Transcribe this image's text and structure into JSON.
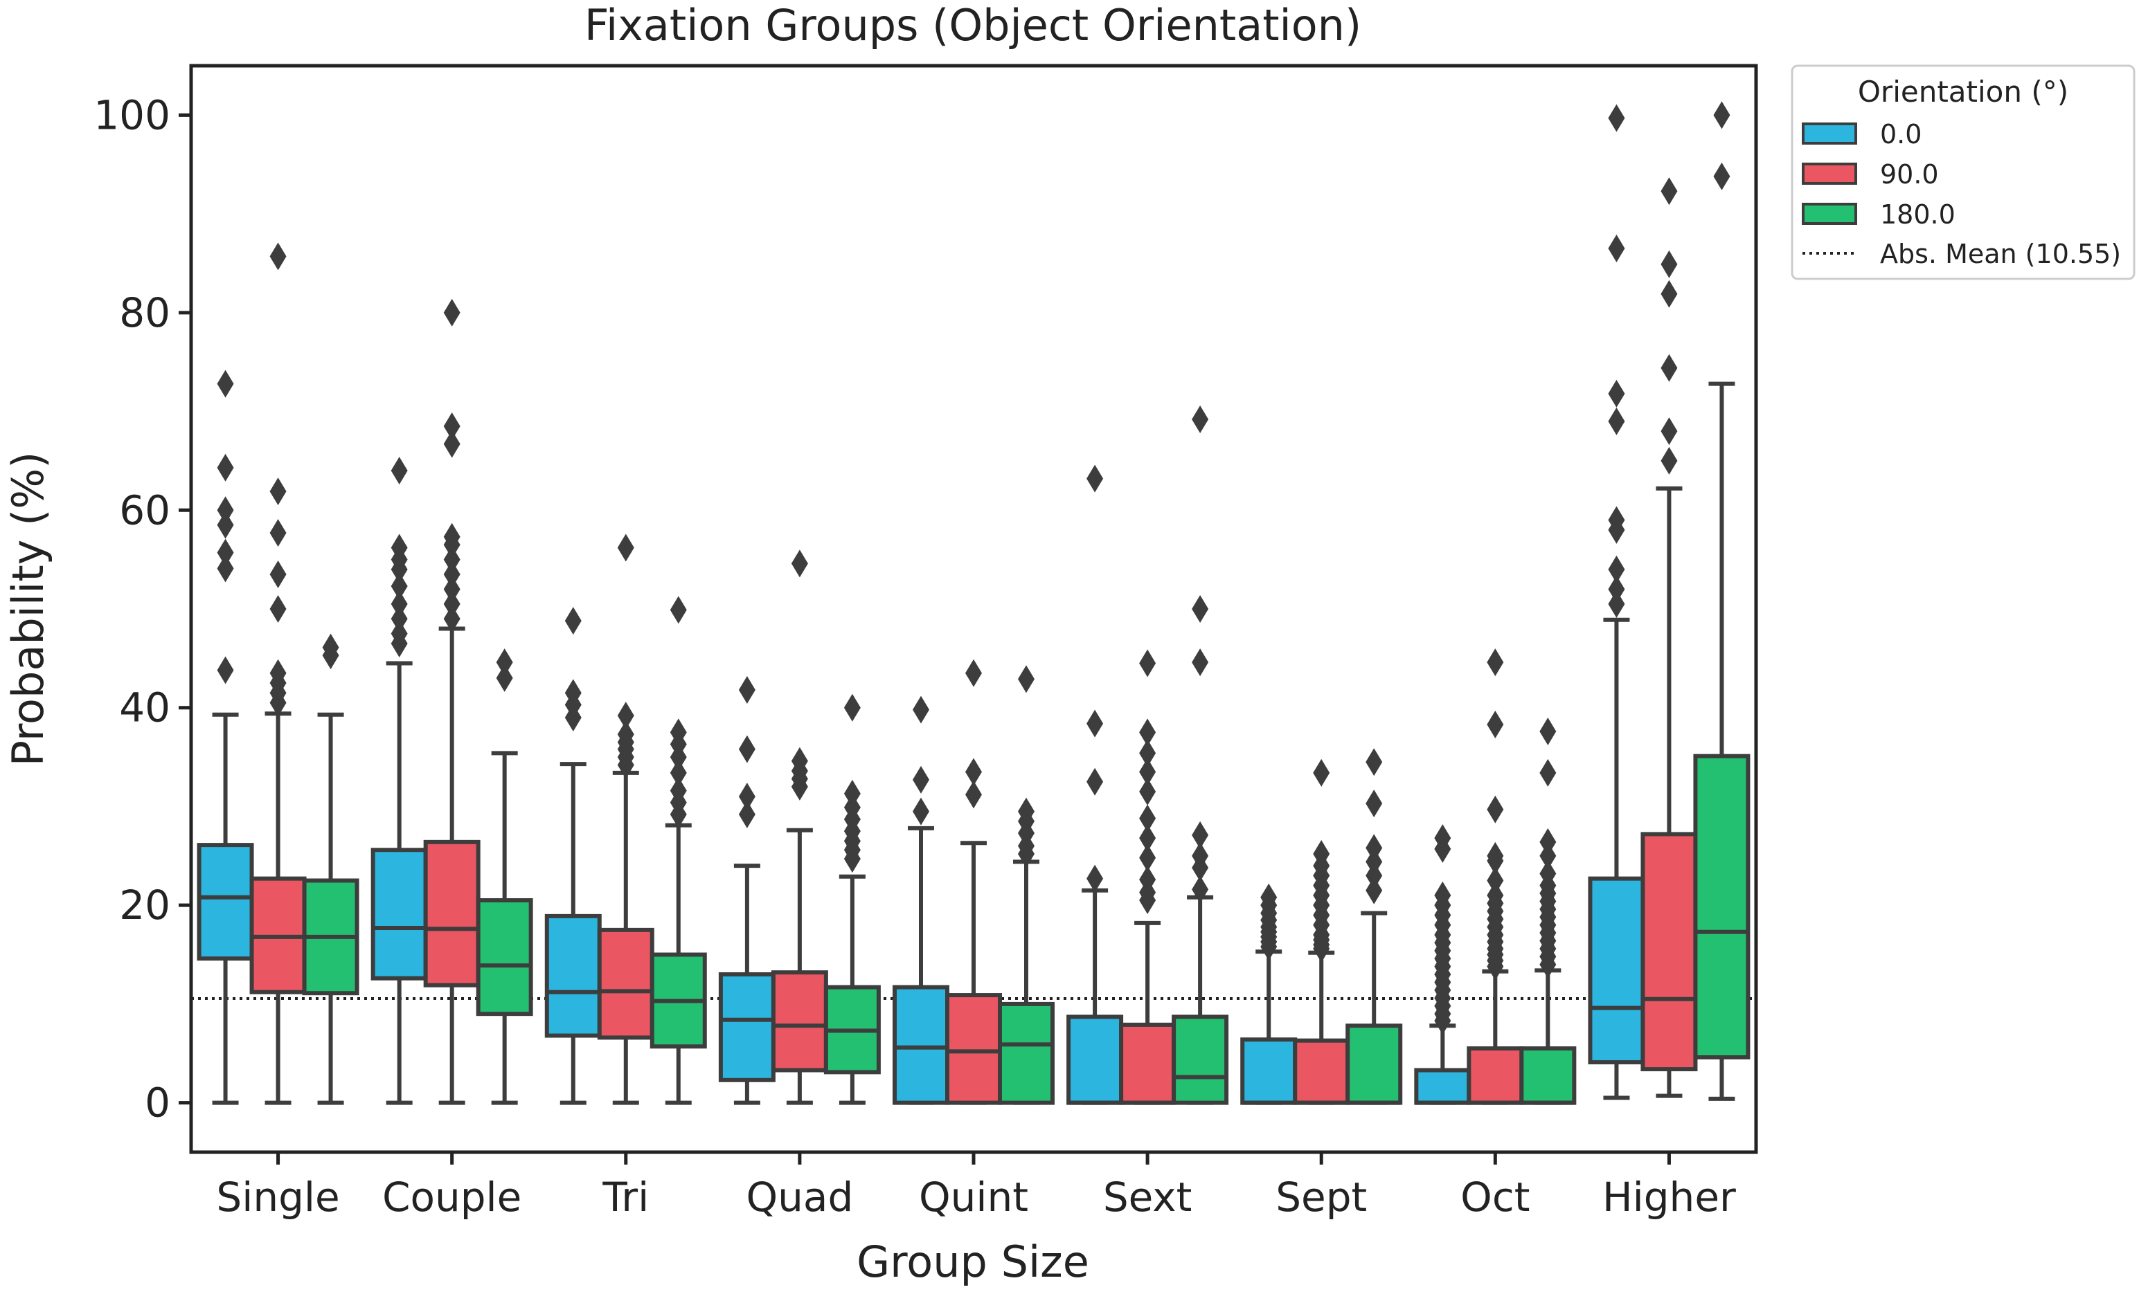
{
  "chart_data": {
    "type": "box",
    "title": "Fixation Groups (Object Orientation)",
    "xlabel": "Group Size",
    "ylabel": "Probability (%)",
    "ylim": [
      -5,
      105
    ],
    "yticks": [
      0,
      20,
      40,
      60,
      80,
      100
    ],
    "categories": [
      "Single",
      "Couple",
      "Tri",
      "Quad",
      "Quint",
      "Sext",
      "Sept",
      "Oct",
      "Higher"
    ],
    "legend": {
      "title": "Orientation (°)",
      "position": "outside-top-right",
      "mean_label": "Abs. Mean (10.55)"
    },
    "mean_line": 10.55,
    "series": [
      {
        "name": "0.0",
        "color": "#2bb5df",
        "boxes": [
          {
            "whislo": 0,
            "q1": 14.6,
            "med": 20.8,
            "q3": 26.1,
            "whishi": 39.3,
            "fliers": [
              43.8,
              54.1,
              55.7,
              58.5,
              60.0,
              64.3,
              72.8
            ]
          },
          {
            "whislo": 0,
            "q1": 12.6,
            "med": 17.7,
            "q3": 25.6,
            "whishi": 44.5,
            "fliers": [
              46.5,
              47.5,
              49.0,
              50.5,
              52.3,
              54.0,
              55.0,
              56.2,
              64.0
            ]
          },
          {
            "whislo": 0,
            "q1": 6.8,
            "med": 11.2,
            "q3": 18.9,
            "whishi": 34.3,
            "fliers": [
              39.0,
              40.3,
              41.5,
              48.8
            ]
          },
          {
            "whislo": 0,
            "q1": 2.3,
            "med": 8.4,
            "q3": 13.0,
            "whishi": 24.0,
            "fliers": [
              29.2,
              31.0,
              35.8,
              41.8
            ]
          },
          {
            "whislo": 0,
            "q1": 0,
            "med": 5.6,
            "q3": 11.7,
            "whishi": 27.8,
            "fliers": [
              29.5,
              32.7,
              39.8
            ]
          },
          {
            "whislo": 0,
            "q1": 0,
            "med": 0,
            "q3": 8.7,
            "whishi": 21.5,
            "fliers": [
              22.7,
              32.5,
              38.4,
              63.2
            ]
          },
          {
            "whislo": 0,
            "q1": 0,
            "med": 0,
            "q3": 6.4,
            "whishi": 15.3,
            "fliers": [
              15.8,
              16.3,
              16.8,
              17.3,
              17.8,
              18.5,
              19.2,
              20.0,
              20.8
            ]
          },
          {
            "whislo": 0,
            "q1": 0,
            "med": 0,
            "q3": 3.3,
            "whishi": 7.8,
            "fliers": [
              8.3,
              9.0,
              9.8,
              10.6,
              11.4,
              12.2,
              13.0,
              13.8,
              14.6,
              15.4,
              16.2,
              17.0,
              18.0,
              19.0,
              20.0,
              21.0,
              25.7,
              26.8
            ]
          },
          {
            "whislo": 0.5,
            "q1": 4.1,
            "med": 9.6,
            "q3": 22.7,
            "whishi": 48.9,
            "fliers": [
              50.5,
              52.0,
              54.0,
              58.0,
              59.0,
              69.0,
              71.8,
              86.5,
              99.7
            ]
          }
        ]
      },
      {
        "name": "90.0",
        "color": "#ea5661",
        "boxes": [
          {
            "whislo": 0,
            "q1": 11.2,
            "med": 16.8,
            "q3": 22.7,
            "whishi": 39.4,
            "fliers": [
              40.5,
              41.5,
              42.5,
              43.5,
              50.0,
              53.5,
              57.7,
              61.9,
              85.7
            ]
          },
          {
            "whislo": 0,
            "q1": 11.9,
            "med": 17.6,
            "q3": 26.4,
            "whishi": 48.0,
            "fliers": [
              49.0,
              50.5,
              52.0,
              53.5,
              55.0,
              56.5,
              57.3,
              66.7,
              68.5,
              80.0
            ]
          },
          {
            "whislo": 0,
            "q1": 6.6,
            "med": 11.3,
            "q3": 17.5,
            "whishi": 33.4,
            "fliers": [
              34.2,
              35.0,
              35.8,
              36.5,
              37.3,
              39.2,
              56.2
            ]
          },
          {
            "whislo": 0,
            "q1": 3.3,
            "med": 7.8,
            "q3": 13.2,
            "whishi": 27.6,
            "fliers": [
              32.0,
              32.8,
              33.6,
              34.6,
              54.6
            ]
          },
          {
            "whislo": 0,
            "q1": 0,
            "med": 5.2,
            "q3": 10.9,
            "whishi": 26.3,
            "fliers": [
              31.2,
              33.5,
              43.5
            ]
          },
          {
            "whislo": 0,
            "q1": 0,
            "med": 0,
            "q3": 7.9,
            "whishi": 18.2,
            "fliers": [
              20.5,
              21.3,
              22.6,
              24.8,
              26.8,
              28.8,
              31.5,
              33.5,
              35.4,
              37.5,
              44.5
            ]
          },
          {
            "whislo": 0,
            "q1": 0,
            "med": 0,
            "q3": 6.3,
            "whishi": 15.2,
            "fliers": [
              15.6,
              16.0,
              16.5,
              17.0,
              18.0,
              19.0,
              20.0,
              21.0,
              22.0,
              23.0,
              24.0,
              25.2,
              33.4
            ]
          },
          {
            "whislo": 0,
            "q1": 0,
            "med": 0,
            "q3": 5.5,
            "whishi": 13.3,
            "fliers": [
              13.8,
              14.4,
              15.0,
              15.6,
              16.3,
              17.0,
              17.8,
              18.6,
              19.4,
              20.2,
              21.0,
              22.5,
              24.5,
              25.0,
              29.7,
              38.3,
              44.6
            ]
          },
          {
            "whislo": 0.7,
            "q1": 3.4,
            "med": 10.5,
            "q3": 27.2,
            "whishi": 62.2,
            "fliers": [
              65.0,
              68.0,
              74.4,
              81.9,
              84.9,
              92.3
            ]
          }
        ]
      },
      {
        "name": "180.0",
        "color": "#24c071",
        "boxes": [
          {
            "whislo": 0,
            "q1": 11.1,
            "med": 16.8,
            "q3": 22.5,
            "whishi": 39.3,
            "fliers": [
              45.3,
              46.1
            ]
          },
          {
            "whislo": 0,
            "q1": 9.0,
            "med": 13.9,
            "q3": 20.5,
            "whishi": 35.4,
            "fliers": [
              43.0,
              44.6
            ]
          },
          {
            "whislo": 0,
            "q1": 5.7,
            "med": 10.3,
            "q3": 15.0,
            "whishi": 28.1,
            "fliers": [
              29.2,
              30.4,
              31.6,
              33.4,
              35.0,
              36.3,
              37.5,
              49.9
            ]
          },
          {
            "whislo": 0,
            "q1": 3.1,
            "med": 7.3,
            "q3": 11.7,
            "whishi": 22.9,
            "fliers": [
              24.7,
              25.6,
              26.5,
              27.5,
              28.7,
              29.9,
              31.3,
              40.0
            ]
          },
          {
            "whislo": 0,
            "q1": 0,
            "med": 5.9,
            "q3": 10.0,
            "whishi": 24.4,
            "fliers": [
              25.2,
              26.0,
              27.3,
              28.5,
              29.5,
              42.9
            ]
          },
          {
            "whislo": 0,
            "q1": 0,
            "med": 2.6,
            "q3": 8.7,
            "whishi": 20.8,
            "fliers": [
              21.6,
              23.8,
              25.0,
              27.1,
              44.6,
              50.0,
              69.2
            ]
          },
          {
            "whislo": 0,
            "q1": 0,
            "med": 0,
            "q3": 7.8,
            "whishi": 19.2,
            "fliers": [
              21.5,
              23.0,
              24.4,
              25.8,
              30.3,
              34.5
            ]
          },
          {
            "whislo": 0,
            "q1": 0,
            "med": 0,
            "q3": 5.5,
            "whishi": 13.4,
            "fliers": [
              14.0,
              14.8,
              15.6,
              16.4,
              17.2,
              18.0,
              18.8,
              19.6,
              20.4,
              21.2,
              22.0,
              23.2,
              25.0,
              26.4,
              33.4,
              37.6
            ]
          },
          {
            "whislo": 0.4,
            "q1": 4.6,
            "med": 17.3,
            "q3": 35.1,
            "whishi": 72.8,
            "fliers": [
              93.8,
              100.0
            ]
          }
        ]
      }
    ]
  }
}
